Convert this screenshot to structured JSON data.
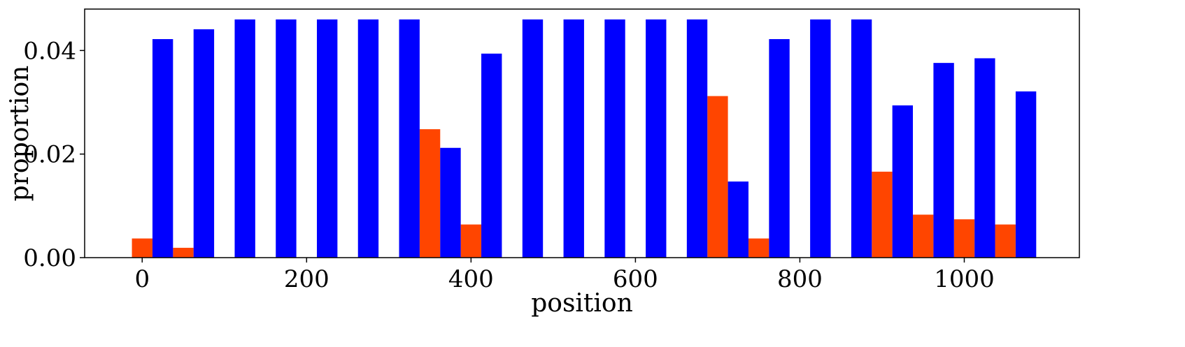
{
  "chart_data": {
    "type": "bar",
    "title": "",
    "xlabel": "position",
    "ylabel": "proportion",
    "xlim": [
      -70,
      1140
    ],
    "ylim": [
      0,
      0.048
    ],
    "x_ticks": [
      0,
      200,
      400,
      600,
      800,
      1000
    ],
    "x_tick_labels": [
      "0",
      "200",
      "400",
      "600",
      "800",
      "1000"
    ],
    "y_ticks": [
      0,
      0.02,
      0.04
    ],
    "y_tick_labels": [
      "0.00",
      "0.02",
      "0.04"
    ],
    "bar_width": 25,
    "grid": false,
    "legend": "none",
    "x": [
      0,
      50,
      100,
      150,
      200,
      250,
      300,
      350,
      400,
      450,
      500,
      550,
      600,
      650,
      700,
      750,
      800,
      850,
      900,
      950,
      1000,
      1050
    ],
    "series": [
      {
        "color": "#ff4500",
        "values": [
          0.0037,
          0.0019,
          0,
          0,
          0,
          0,
          0,
          0.0248,
          0.0064,
          0,
          0,
          0,
          0,
          0,
          0.0312,
          0.0037,
          0,
          0,
          0.0166,
          0.0083,
          0.0074,
          0.0064
        ]
      },
      {
        "color": "#0000ff",
        "values": [
          0.0422,
          0.0441,
          0.046,
          0.046,
          0.046,
          0.046,
          0.046,
          0.0212,
          0.0394,
          0.046,
          0.046,
          0.046,
          0.046,
          0.046,
          0.0147,
          0.0422,
          0.046,
          0.046,
          0.0294,
          0.0376,
          0.0385,
          0.0321
        ]
      }
    ]
  }
}
